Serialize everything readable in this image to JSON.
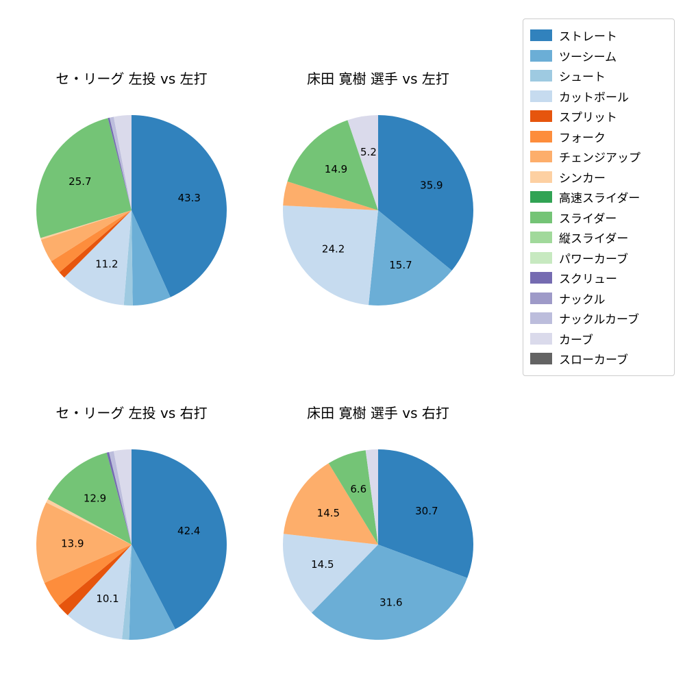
{
  "figure": {
    "background": "#ffffff",
    "text_color": "#000000"
  },
  "legend": {
    "position": "upper right",
    "border_color": "#cccccc",
    "items": [
      {
        "label": "ストレート",
        "color": "#3182bd"
      },
      {
        "label": "ツーシーム",
        "color": "#6baed6"
      },
      {
        "label": "シュート",
        "color": "#9ecae1"
      },
      {
        "label": "カットボール",
        "color": "#c6dbef"
      },
      {
        "label": "スプリット",
        "color": "#e6550d"
      },
      {
        "label": "フォーク",
        "color": "#fd8d3c"
      },
      {
        "label": "チェンジアップ",
        "color": "#fdae6b"
      },
      {
        "label": "シンカー",
        "color": "#fdd0a2"
      },
      {
        "label": "高速スライダー",
        "color": "#31a354"
      },
      {
        "label": "スライダー",
        "color": "#74c476"
      },
      {
        "label": "縦スライダー",
        "color": "#a1d99b"
      },
      {
        "label": "パワーカーブ",
        "color": "#c7e9c0"
      },
      {
        "label": "スクリュー",
        "color": "#756bb1"
      },
      {
        "label": "ナックル",
        "color": "#9e9ac8"
      },
      {
        "label": "ナックルカーブ",
        "color": "#bcbddc"
      },
      {
        "label": "カーブ",
        "color": "#dadaeb"
      },
      {
        "label": "スローカーブ",
        "color": "#636363"
      }
    ]
  },
  "chart_data": [
    {
      "type": "pie",
      "title": "セ・リーグ 左投 vs 左打",
      "start_angle_deg": 90,
      "direction": "clockwise",
      "label_format": "percent_one_decimal",
      "slices": [
        {
          "name": "ストレート",
          "value": 43.3,
          "label": "43.3"
        },
        {
          "name": "ツーシーム",
          "value": 6.5,
          "label": ""
        },
        {
          "name": "シュート",
          "value": 1.5,
          "label": ""
        },
        {
          "name": "カットボール",
          "value": 11.2,
          "label": "11.2"
        },
        {
          "name": "スプリット",
          "value": 1.2,
          "label": ""
        },
        {
          "name": "フォーク",
          "value": 2.3,
          "label": ""
        },
        {
          "name": "チェンジアップ",
          "value": 4.0,
          "label": ""
        },
        {
          "name": "シンカー",
          "value": 0.3,
          "label": ""
        },
        {
          "name": "スライダー",
          "value": 25.7,
          "label": "25.7"
        },
        {
          "name": "スクリュー",
          "value": 0.3,
          "label": ""
        },
        {
          "name": "ナックルカーブ",
          "value": 0.7,
          "label": ""
        },
        {
          "name": "カーブ",
          "value": 3.0,
          "label": ""
        }
      ]
    },
    {
      "type": "pie",
      "title": "床田 寛樹 選手 vs 左打",
      "start_angle_deg": 90,
      "direction": "clockwise",
      "label_format": "percent_one_decimal",
      "slices": [
        {
          "name": "ストレート",
          "value": 35.9,
          "label": "35.9"
        },
        {
          "name": "ツーシーム",
          "value": 15.7,
          "label": "15.7"
        },
        {
          "name": "カットボール",
          "value": 24.2,
          "label": "24.2"
        },
        {
          "name": "チェンジアップ",
          "value": 4.1,
          "label": ""
        },
        {
          "name": "スライダー",
          "value": 14.9,
          "label": "14.9"
        },
        {
          "name": "カーブ",
          "value": 5.2,
          "label": "5.2"
        }
      ]
    },
    {
      "type": "pie",
      "title": "セ・リーグ 左投 vs 右打",
      "start_angle_deg": 90,
      "direction": "clockwise",
      "label_format": "percent_one_decimal",
      "slices": [
        {
          "name": "ストレート",
          "value": 42.4,
          "label": "42.4"
        },
        {
          "name": "ツーシーム",
          "value": 8.0,
          "label": ""
        },
        {
          "name": "シュート",
          "value": 1.2,
          "label": ""
        },
        {
          "name": "カットボール",
          "value": 10.1,
          "label": "10.1"
        },
        {
          "name": "スプリット",
          "value": 2.2,
          "label": ""
        },
        {
          "name": "フォーク",
          "value": 4.5,
          "label": ""
        },
        {
          "name": "チェンジアップ",
          "value": 13.9,
          "label": "13.9"
        },
        {
          "name": "シンカー",
          "value": 0.6,
          "label": ""
        },
        {
          "name": "スライダー",
          "value": 12.9,
          "label": "12.9"
        },
        {
          "name": "スクリュー",
          "value": 0.4,
          "label": ""
        },
        {
          "name": "ナックルカーブ",
          "value": 0.8,
          "label": ""
        },
        {
          "name": "カーブ",
          "value": 3.0,
          "label": ""
        }
      ]
    },
    {
      "type": "pie",
      "title": "床田 寛樹 選手 vs 右打",
      "start_angle_deg": 90,
      "direction": "clockwise",
      "label_format": "percent_one_decimal",
      "slices": [
        {
          "name": "ストレート",
          "value": 30.7,
          "label": "30.7"
        },
        {
          "name": "ツーシーム",
          "value": 31.6,
          "label": "31.6"
        },
        {
          "name": "カットボール",
          "value": 14.5,
          "label": "14.5"
        },
        {
          "name": "チェンジアップ",
          "value": 14.5,
          "label": "14.5"
        },
        {
          "name": "スライダー",
          "value": 6.6,
          "label": "6.6"
        },
        {
          "name": "カーブ",
          "value": 2.1,
          "label": ""
        }
      ]
    }
  ]
}
